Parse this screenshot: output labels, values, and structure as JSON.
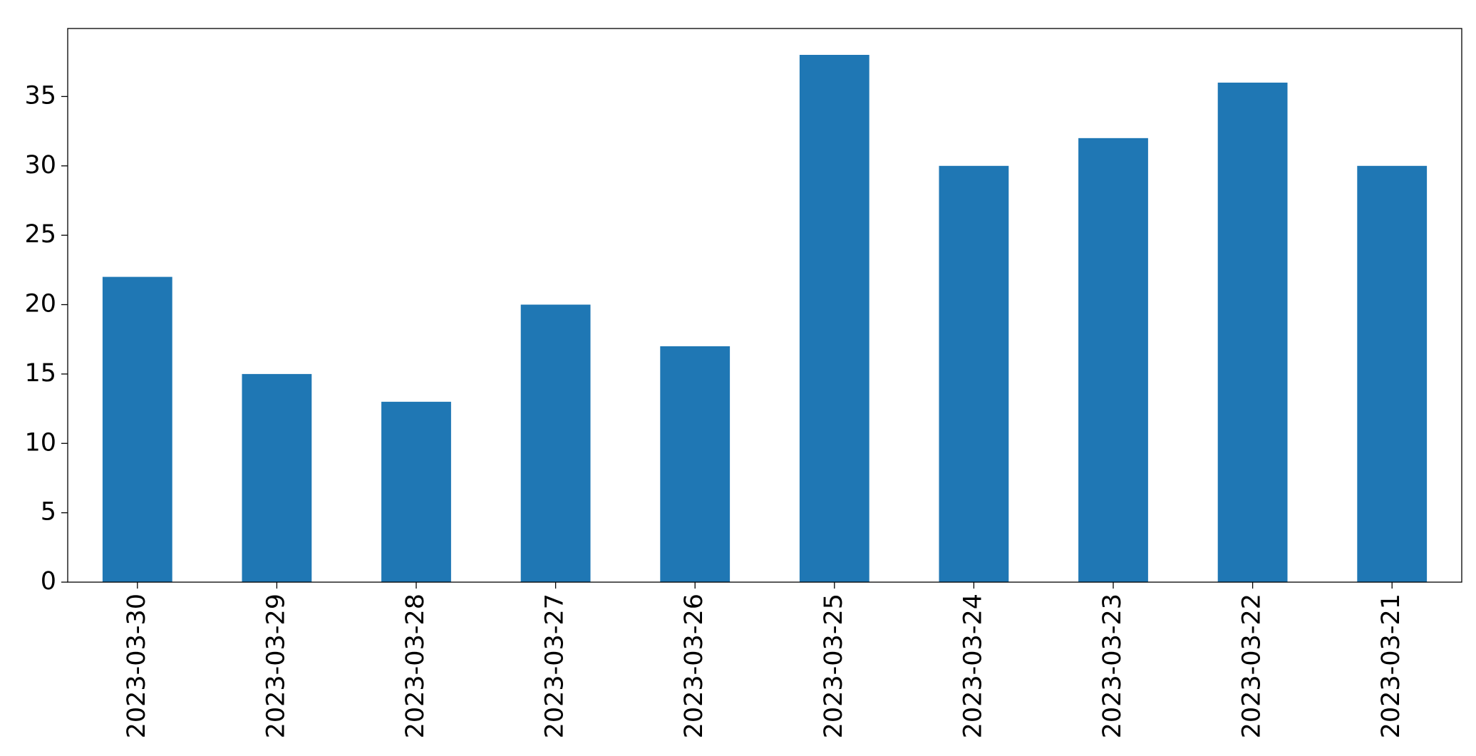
{
  "chart_data": {
    "type": "bar",
    "categories": [
      "2023-03-30",
      "2023-03-29",
      "2023-03-28",
      "2023-03-27",
      "2023-03-26",
      "2023-03-25",
      "2023-03-24",
      "2023-03-23",
      "2023-03-22",
      "2023-03-21"
    ],
    "values": [
      22,
      15,
      13,
      20,
      17,
      38,
      30,
      32,
      36,
      30
    ],
    "color": "#1f77b4",
    "ylim": [
      0,
      39.9
    ],
    "yticks": [
      0,
      5,
      10,
      15,
      20,
      25,
      30,
      35
    ],
    "grid": false
  }
}
